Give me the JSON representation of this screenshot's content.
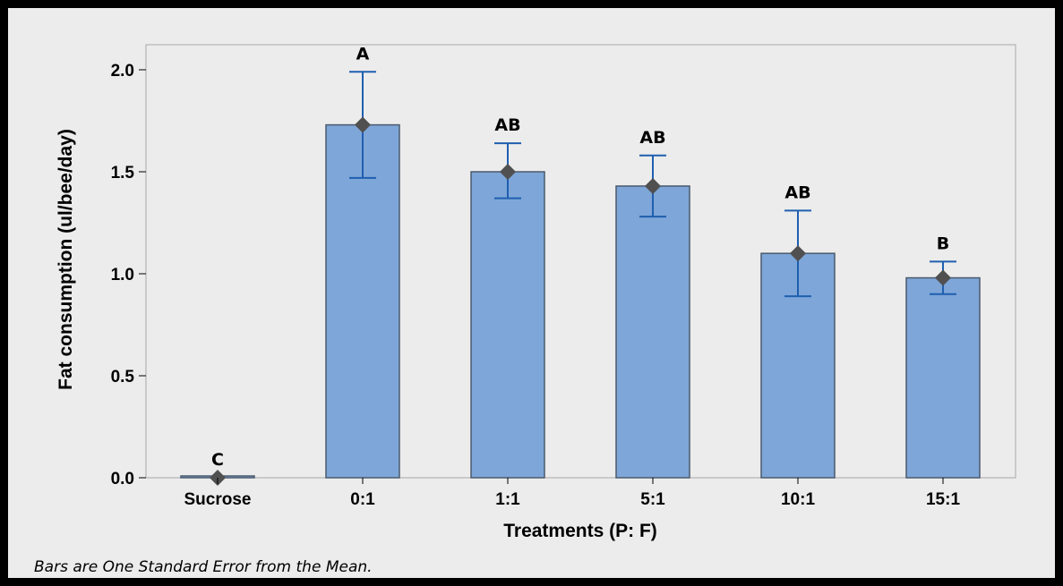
{
  "footnote": "Bars are One Standard Error from the Mean.",
  "colors": {
    "bar_fill": "#7ea6d8",
    "bar_stroke": "#4a5a6e",
    "errorbar": "#1f5fb0",
    "mean_marker": "#505050",
    "background": "#ececec",
    "plot_background": "#ececec",
    "border": "#000000"
  },
  "chart_data": {
    "type": "bar",
    "title": "",
    "xlabel": "Treatments (P: F)",
    "ylabel": "Fat consumption (ul/bee/day)",
    "categories": [
      "Sucrose",
      "0:1",
      "1:1",
      "5:1",
      "10:1",
      "15:1"
    ],
    "values": [
      0.0,
      1.73,
      1.5,
      1.43,
      1.1,
      0.98
    ],
    "error_low": [
      0.0,
      1.47,
      1.37,
      1.28,
      0.89,
      0.9
    ],
    "error_high": [
      0.0,
      1.99,
      1.64,
      1.58,
      1.31,
      1.06
    ],
    "significance_letters": [
      "C",
      "A",
      "AB",
      "AB",
      "AB",
      "B"
    ],
    "ylim": [
      0,
      2.0
    ],
    "yticks": [
      "0.0",
      "0.5",
      "1.0",
      "1.5",
      "2.0"
    ],
    "grid": false,
    "legend": "none",
    "markers": "diamond at mean"
  }
}
